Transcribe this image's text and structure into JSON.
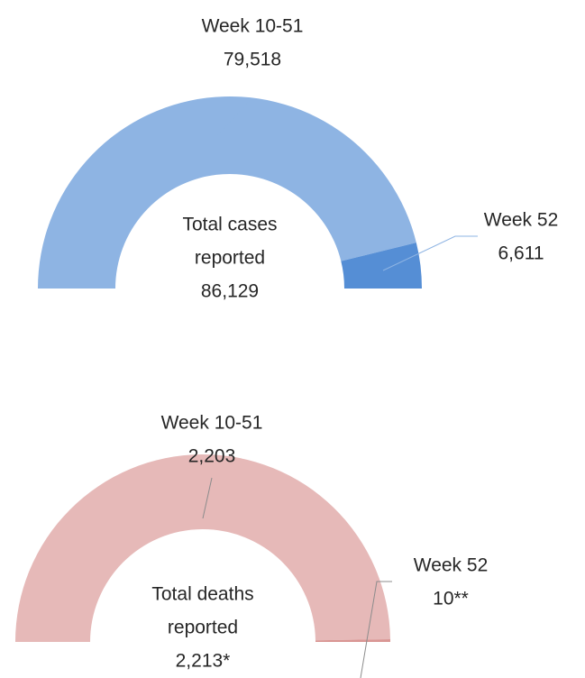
{
  "chart_data": [
    {
      "type": "pie",
      "shape": "half-donut",
      "categories": [
        "Week 10-51",
        "Week 52"
      ],
      "values": [
        79518,
        6611
      ],
      "value_labels": [
        "79,518",
        "6,611"
      ],
      "colors": [
        "#8eb4e3",
        "#558ed5"
      ],
      "center_lines": [
        "Total cases",
        "reported"
      ],
      "total": 86129,
      "total_label": "86,129"
    },
    {
      "type": "pie",
      "shape": "half-donut",
      "categories": [
        "Week 10-51",
        "Week 52"
      ],
      "values": [
        2203,
        10
      ],
      "value_labels": [
        "2,203",
        "10**"
      ],
      "colors": [
        "#e6b9b8",
        "#d99694"
      ],
      "center_lines": [
        "Total deaths",
        "reported"
      ],
      "total": 2213,
      "total_label": "2,213*"
    }
  ]
}
